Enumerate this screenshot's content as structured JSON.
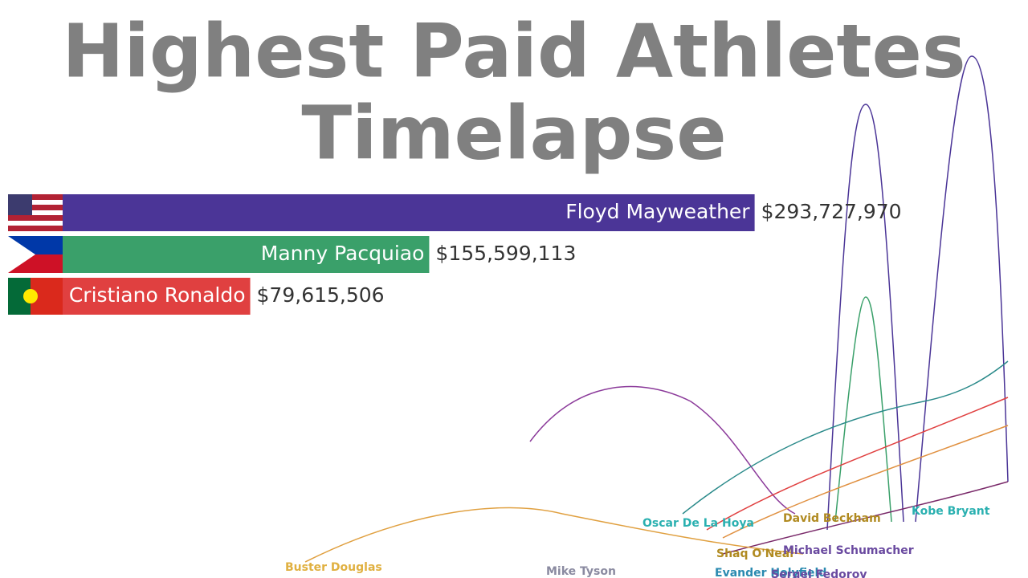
{
  "title": "Highest Paid Athletes",
  "subtitle": "Timelapse",
  "chart_data": {
    "type": "bar",
    "categories": [
      "Floyd Mayweather",
      "Manny Pacquiao",
      "Cristiano Ronaldo"
    ],
    "values": [
      293727970,
      155599113,
      79615506
    ],
    "value_labels": [
      "$293,727,970",
      "$155,599,113",
      "$79,615,506"
    ],
    "colors": [
      "#4b3597",
      "#3aa06a",
      "#e04040"
    ],
    "xlim": [
      0,
      300000000
    ]
  },
  "line_labels": [
    "Oscar De La Hoya",
    "David Beckham",
    "Kobe Bryant",
    "Shaq O'Neal",
    "Michael Schumacher",
    "Buster Douglas",
    "Mike Tyson",
    "Evander Holyfield",
    "Sergei Fedorov"
  ]
}
